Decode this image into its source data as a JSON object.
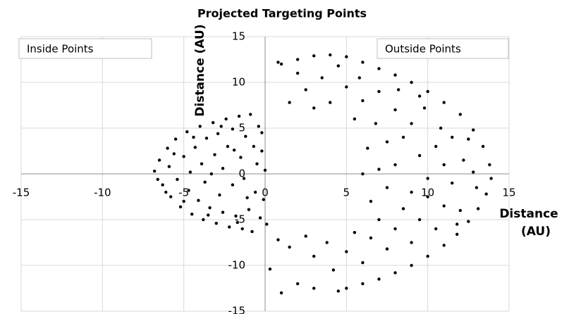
{
  "chart_data": {
    "type": "scatter",
    "title": "Projected Targeting Points",
    "x_label": "Distance (AU)",
    "y_label": "Distance (AU)",
    "xlim": [
      -15,
      15
    ],
    "ylim": [
      -15,
      15
    ],
    "xticks": [
      -15,
      -10,
      -5,
      0,
      5,
      10,
      15
    ],
    "yticks": [
      -15,
      -10,
      -5,
      0,
      5,
      10,
      15
    ],
    "grid": true,
    "series": [
      {
        "name": "Inside Points",
        "color": "#000000",
        "x": [
          -6.8,
          -6.5,
          -6.3,
          -6,
          -5.8,
          -5.5,
          -5.2,
          -4.8,
          -4.5,
          -4,
          -3.8,
          -3.2,
          -3,
          -2.4,
          -2.2,
          -1.6,
          -1.4,
          -0.9,
          -0.8,
          -0.4,
          -0.3,
          -0.2,
          -0.1,
          0,
          -5.9,
          -5.4,
          -5,
          -4.7,
          -4.3,
          -4.1,
          -3.6,
          -3.4,
          -2.9,
          -2.6,
          -2,
          -1.8,
          -1.2,
          -1,
          -0.7,
          -0.6,
          -0.5,
          -4.6,
          -3.9,
          -3.7,
          -3.1,
          -2.8,
          -2.3,
          -2,
          -1.5,
          -1.3,
          -2.6,
          -3.3,
          -1.9,
          -1.1,
          -6.6,
          -6.1,
          -5.6,
          -5,
          -4.4,
          -3.5,
          -2.7,
          -1.7,
          0.1,
          -0.2
        ],
        "values": [
          0.3,
          1.5,
          -1.2,
          2.8,
          -2.5,
          3.8,
          -3.6,
          4.6,
          -4.4,
          5.2,
          -5,
          5.6,
          -5.4,
          6,
          -5.8,
          6.3,
          -6,
          6.5,
          -6.3,
          5.2,
          -4.8,
          2.5,
          -2.8,
          0.4,
          0.8,
          -0.6,
          1.9,
          -1.8,
          2.9,
          -2.9,
          3.9,
          -3.7,
          4.4,
          -4.2,
          4.9,
          -4.6,
          4.1,
          -3.9,
          3,
          -2,
          1.1,
          0.2,
          1.1,
          -0.9,
          2.1,
          -2.3,
          3,
          -1.2,
          1.8,
          -0.5,
          0.6,
          0,
          2.6,
          -2.6,
          -0.6,
          -2,
          2.2,
          -3,
          4,
          -4.5,
          5.2,
          -5.3,
          -5.5,
          4.5
        ]
      },
      {
        "name": "Outside Points",
        "color": "#000000",
        "x": [
          1,
          2,
          3,
          4,
          5,
          6,
          7,
          8,
          9,
          10,
          11,
          12,
          12.8,
          13.4,
          13.8,
          13.9,
          13.6,
          13.1,
          12.5,
          11.8,
          11,
          10,
          9,
          8,
          7,
          6,
          5,
          4.5,
          3,
          2,
          1,
          0.3,
          0.8,
          1.5,
          2.5,
          3,
          3.8,
          4.2,
          5,
          5.5,
          6,
          6.5,
          7,
          7.5,
          8,
          8.5,
          9,
          9.5,
          10,
          10.5,
          11,
          11.5,
          12,
          12.2,
          11,
          10.5,
          10,
          9.5,
          9,
          8.5,
          8,
          7.5,
          7,
          6.5,
          6.3,
          6,
          6.8,
          7.5,
          8,
          9,
          9.8,
          10.8,
          11.5,
          12.5,
          7,
          6,
          5.5,
          5,
          4,
          3.5,
          3,
          2.5,
          2,
          1.5,
          0.8,
          4.5,
          5.8,
          8.2,
          9.5,
          11.8,
          13,
          12.8
        ],
        "values": [
          12,
          12.5,
          12.9,
          13,
          12.8,
          12.2,
          11.5,
          10.8,
          10,
          9,
          7.8,
          6.5,
          4.8,
          3,
          1,
          -0.5,
          -2.2,
          -3.8,
          -5.2,
          -6.6,
          -7.8,
          -9,
          -10,
          -10.8,
          -11.5,
          -12,
          -12.5,
          -12.8,
          -12.5,
          -12,
          -13,
          -10.4,
          -7.2,
          -8,
          -6.8,
          -9,
          -7.5,
          -10.5,
          -8.5,
          -6.4,
          -9.7,
          -7,
          -5,
          -8.2,
          -6,
          -3.8,
          -7.5,
          -5,
          -2.5,
          -6,
          -3.5,
          -1,
          -4,
          1.5,
          1,
          3,
          -0.5,
          2,
          -2,
          4,
          1,
          -1.5,
          0.5,
          -3,
          2.8,
          0,
          5.5,
          3.5,
          7,
          5.5,
          7.2,
          5,
          4,
          3.8,
          9,
          8,
          6,
          9.5,
          7.8,
          10.5,
          7.2,
          9.2,
          11,
          7.8,
          12.2,
          11.8,
          10.5,
          9.2,
          8.5,
          -5.5,
          -1.5,
          0.2
        ]
      }
    ]
  }
}
